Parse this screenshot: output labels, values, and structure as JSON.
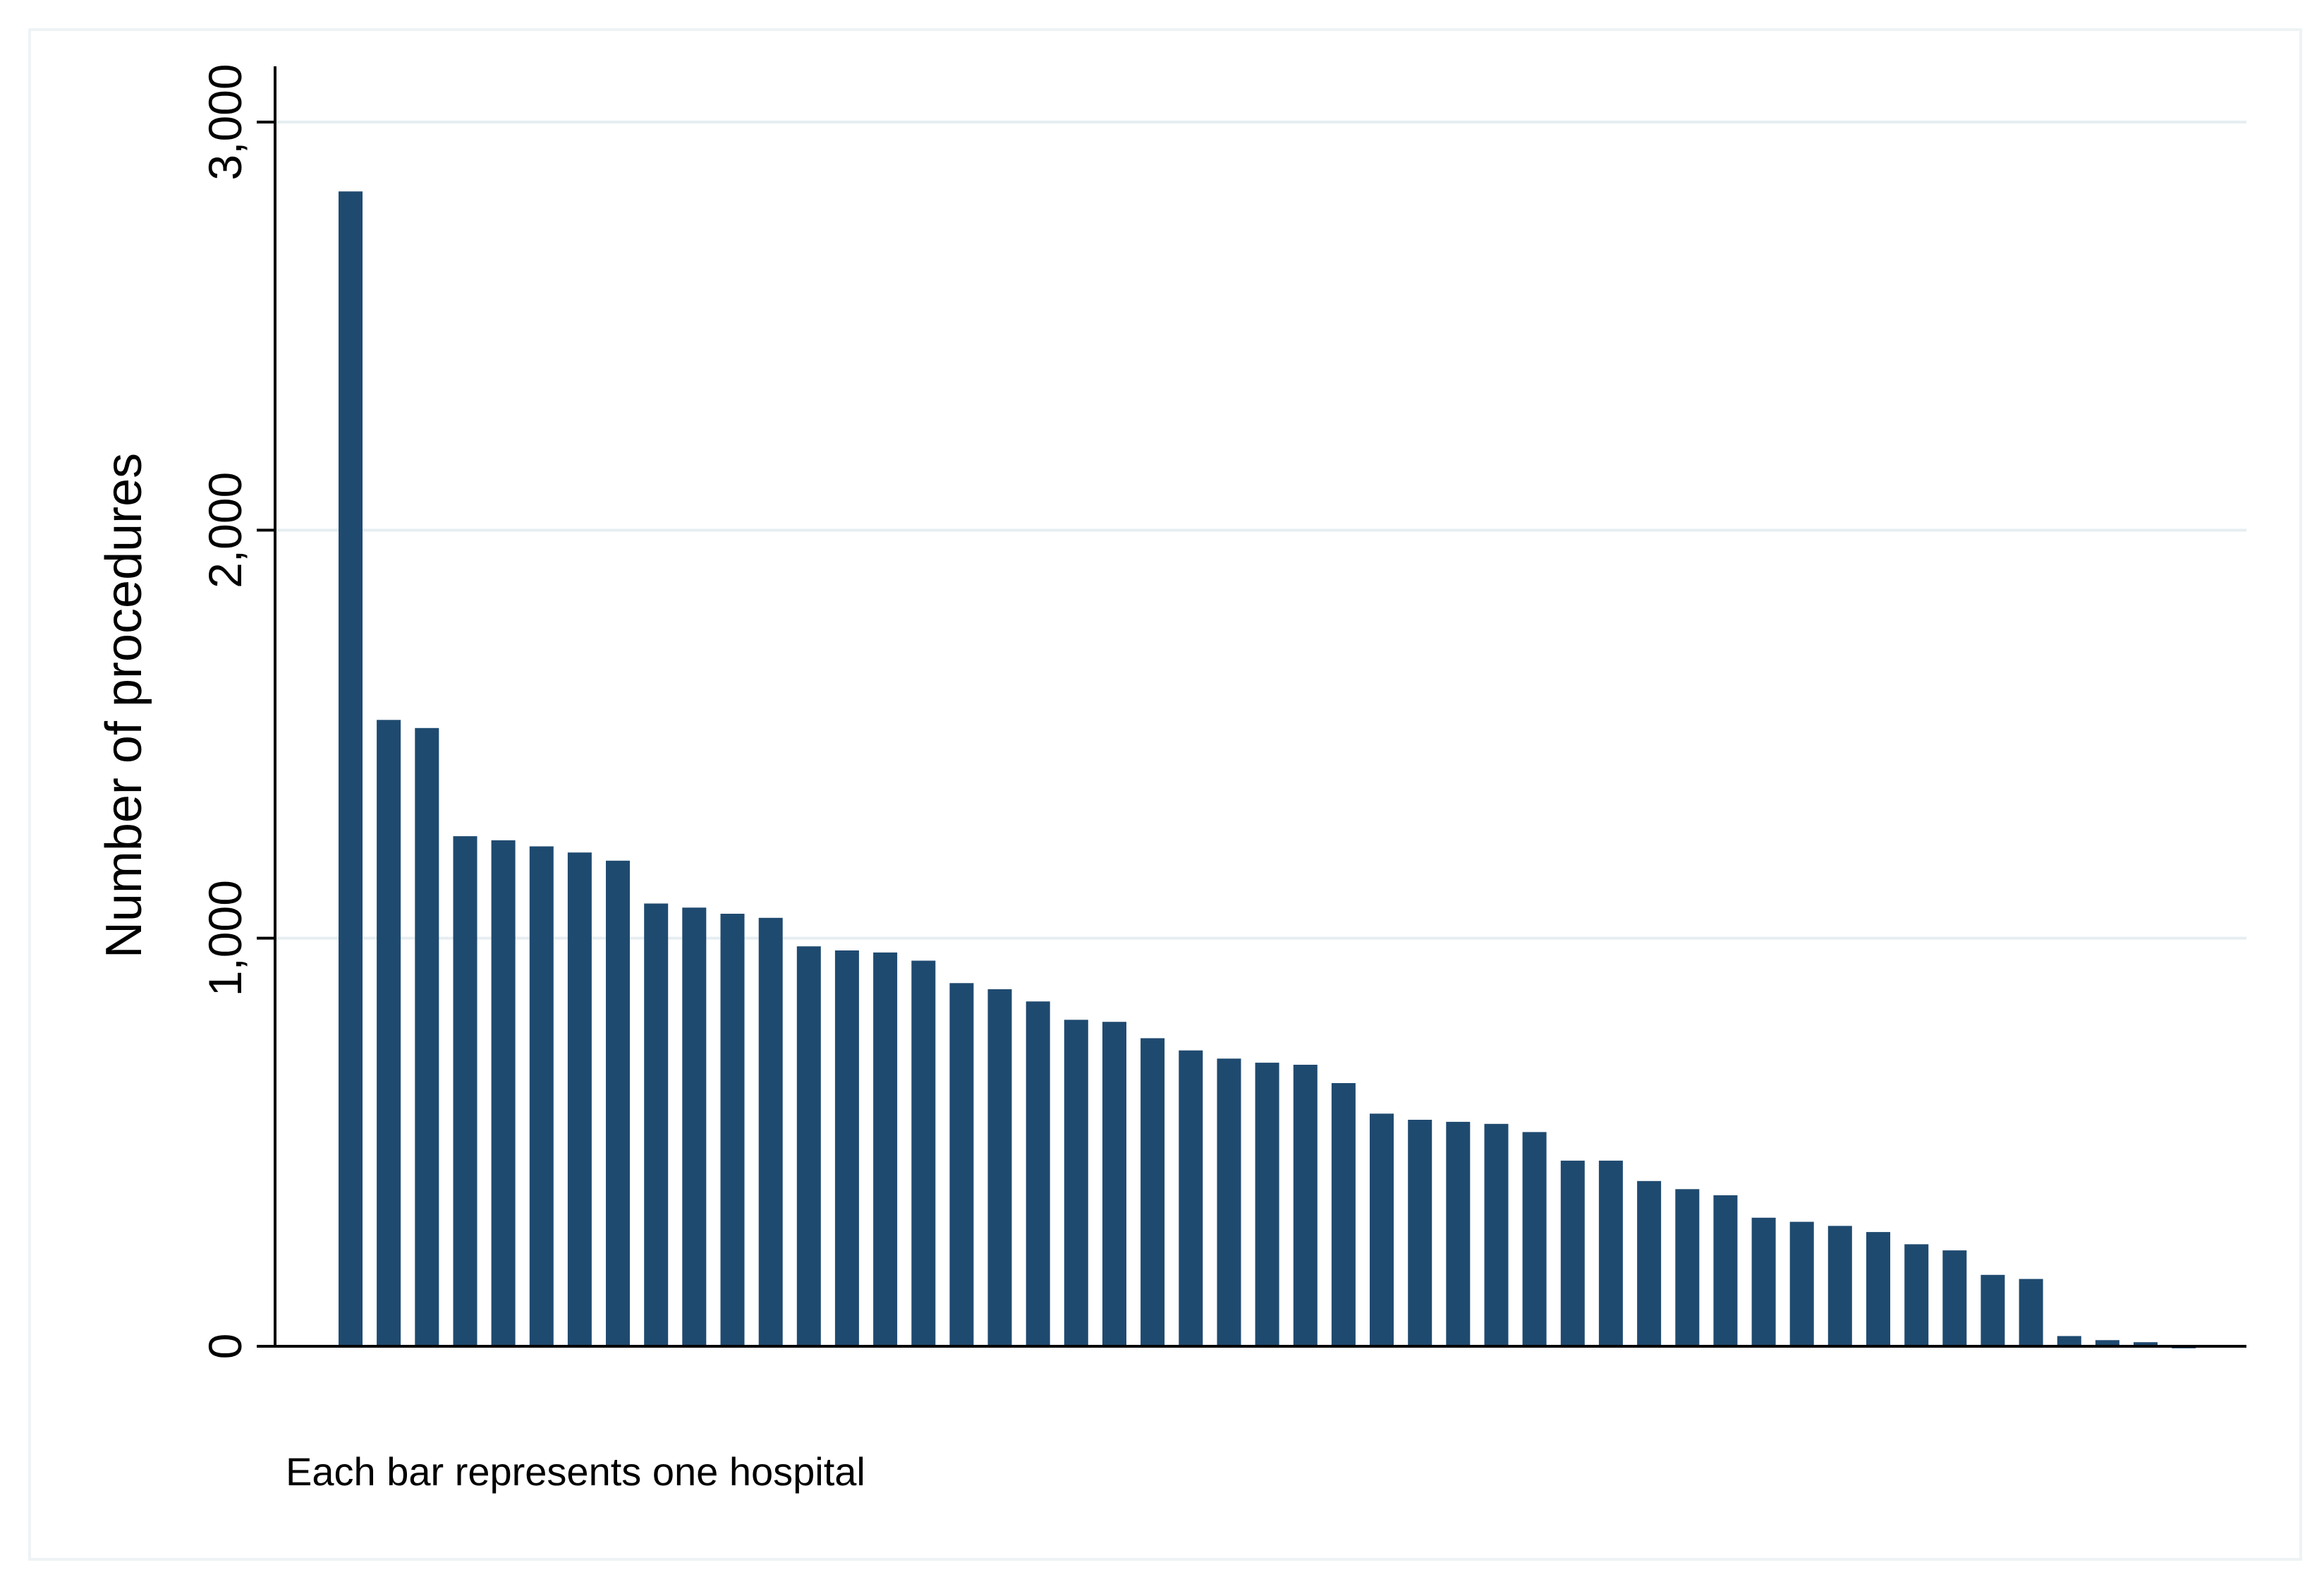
{
  "chart_data": {
    "type": "bar",
    "title": "",
    "xlabel": "",
    "ylabel": "Number of procedures",
    "note": "Each bar represents one hospital",
    "ylim": [
      0,
      3150
    ],
    "yticks": [
      0,
      1000,
      2000,
      3000
    ],
    "ytick_labels": [
      "0",
      "1,000",
      "2,000",
      "3,000"
    ],
    "grid": true,
    "legend": "none",
    "bar_color": "#1f4a70",
    "grid_color": "#e6eef1",
    "values": [
      2830,
      1535,
      1515,
      1250,
      1240,
      1225,
      1210,
      1190,
      1085,
      1075,
      1060,
      1050,
      980,
      970,
      965,
      945,
      890,
      875,
      845,
      800,
      795,
      755,
      725,
      705,
      695,
      690,
      645,
      570,
      555,
      550,
      545,
      525,
      455,
      455,
      405,
      385,
      370,
      315,
      305,
      295,
      280,
      250,
      235,
      175,
      165,
      25,
      15,
      10,
      -5
    ]
  }
}
